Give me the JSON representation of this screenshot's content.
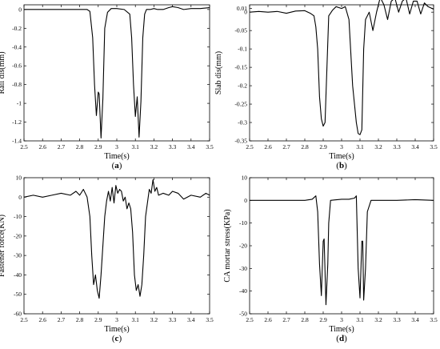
{
  "chart_data": [
    {
      "type": "line",
      "panel_label": "a",
      "xlabel": "Time(s)",
      "ylabel": "Rail dis(mm)",
      "xlim": [
        2.5,
        3.5
      ],
      "ylim": [
        -1.4,
        0.05
      ],
      "xticks": [
        2.5,
        2.6,
        2.7,
        2.8,
        2.9,
        3.0,
        3.1,
        3.2,
        3.3,
        3.4,
        3.5
      ],
      "xtick_labels": [
        "2.5",
        "2.6",
        "2.7",
        "2.8",
        "2.9",
        "3",
        "3.1",
        "3.2",
        "3.3",
        "3.4",
        "3.5"
      ],
      "yticks": [
        0,
        -0.2,
        -0.4,
        -0.6,
        -0.8,
        -1,
        -1.2,
        -1.4
      ],
      "ytick_labels": [
        "0",
        "-0.2",
        "-0.4",
        "-0.6",
        "-0.8",
        "-1",
        "-1.2",
        "-1.4"
      ],
      "grid": false,
      "series": [
        {
          "x": [
            2.5,
            2.6,
            2.7,
            2.8,
            2.84,
            2.855,
            2.87,
            2.88,
            2.89,
            2.9,
            2.905,
            2.915,
            2.925,
            2.935,
            2.95,
            2.97,
            3.0,
            3.04,
            3.07,
            3.08,
            3.09,
            3.1,
            3.11,
            3.12,
            3.13,
            3.14,
            3.15,
            3.16,
            3.18,
            3.2,
            3.22,
            3.25,
            3.28,
            3.3,
            3.33,
            3.36,
            3.4,
            3.45,
            3.5
          ],
          "y": [
            0,
            0,
            0,
            0,
            0,
            -0.02,
            -0.3,
            -0.8,
            -1.13,
            -0.88,
            -0.9,
            -1.37,
            -0.95,
            -0.2,
            -0.03,
            0.01,
            0.01,
            0.0,
            -0.05,
            -0.3,
            -0.8,
            -1.14,
            -0.93,
            -1.36,
            -0.98,
            -0.3,
            -0.05,
            0.0,
            0.0,
            0.01,
            0.0,
            0.0,
            0.02,
            0.03,
            0.02,
            0.0,
            0.01,
            0.01,
            0.02
          ]
        }
      ]
    },
    {
      "type": "line",
      "panel_label": "b",
      "xlabel": "Time(s)",
      "ylabel": "Slab dis(mm)",
      "xlim": [
        2.5,
        3.5
      ],
      "ylim": [
        -0.35,
        0.02
      ],
      "xticks": [
        2.5,
        2.6,
        2.7,
        2.8,
        2.9,
        3.0,
        3.1,
        3.2,
        3.3,
        3.4,
        3.5
      ],
      "xtick_labels": [
        "2.5",
        "2.6",
        "2.7",
        "2.8",
        "2.9",
        "3",
        "3.1",
        "3.2",
        "3.3",
        "3.4",
        "3.5"
      ],
      "yticks": [
        0.01,
        0,
        -0.05,
        -0.1,
        -0.15,
        -0.2,
        -0.25,
        -0.3,
        -0.35
      ],
      "ytick_labels": [
        "0.01",
        "0",
        "-0.05",
        "-0.1",
        "-0.15",
        "-0.2",
        "-0.25",
        "-0.3",
        "-0.35"
      ],
      "grid": false,
      "series": [
        {
          "x": [
            2.5,
            2.55,
            2.6,
            2.65,
            2.7,
            2.75,
            2.8,
            2.83,
            2.85,
            2.86,
            2.87,
            2.88,
            2.89,
            2.9,
            2.91,
            2.93,
            2.95,
            2.97,
            3.0,
            3.02,
            3.04,
            3.06,
            3.08,
            3.09,
            3.1,
            3.11,
            3.12,
            3.13,
            3.15,
            3.17,
            3.19,
            3.21,
            3.23,
            3.25,
            3.27,
            3.29,
            3.31,
            3.33,
            3.35,
            3.37,
            3.39,
            3.41,
            3.43,
            3.45,
            3.47,
            3.5
          ],
          "y": [
            0.0,
            0.002,
            0.0,
            0.002,
            -0.003,
            0.003,
            0.004,
            -0.003,
            -0.01,
            -0.04,
            -0.1,
            -0.23,
            -0.29,
            -0.31,
            -0.3,
            -0.01,
            0.005,
            0.015,
            0.01,
            0.015,
            -0.02,
            -0.2,
            -0.3,
            -0.33,
            -0.333,
            -0.32,
            -0.1,
            -0.02,
            0.0,
            -0.05,
            0.0,
            0.04,
            0.02,
            -0.02,
            0.03,
            0.038,
            0.0,
            0.03,
            0.038,
            -0.005,
            0.03,
            0.03,
            -0.005,
            0.025,
            0.015,
            0.008
          ]
        }
      ]
    },
    {
      "type": "line",
      "panel_label": "c",
      "xlabel": "Time(s)",
      "ylabel": "Fastener force(KN)",
      "xlim": [
        2.5,
        3.5
      ],
      "ylim": [
        -60,
        10
      ],
      "xticks": [
        2.5,
        2.6,
        2.7,
        2.8,
        2.9,
        3.0,
        3.1,
        3.2,
        3.3,
        3.4,
        3.5
      ],
      "xtick_labels": [
        "2.5",
        "2.6",
        "2.7",
        "2.8",
        "2.9",
        "3",
        "3.1",
        "3.2",
        "3.3",
        "3.4",
        "3.5"
      ],
      "yticks": [
        10,
        0,
        -10,
        -20,
        -30,
        -40,
        -50,
        -60
      ],
      "ytick_labels": [
        "10",
        "0",
        "-10",
        "-20",
        "-30",
        "-40",
        "-50",
        "-60"
      ],
      "grid": false,
      "series": [
        {
          "x": [
            2.5,
            2.55,
            2.6,
            2.65,
            2.7,
            2.75,
            2.78,
            2.8,
            2.82,
            2.84,
            2.855,
            2.865,
            2.875,
            2.885,
            2.895,
            2.905,
            2.915,
            2.925,
            2.935,
            2.945,
            2.955,
            2.965,
            2.975,
            2.985,
            2.995,
            3.005,
            3.015,
            3.025,
            3.035,
            3.045,
            3.055,
            3.065,
            3.075,
            3.085,
            3.095,
            3.105,
            3.115,
            3.125,
            3.135,
            3.145,
            3.155,
            3.165,
            3.175,
            3.185,
            3.195,
            3.205,
            3.215,
            3.225,
            3.25,
            3.28,
            3.3,
            3.33,
            3.36,
            3.4,
            3.45,
            3.48,
            3.5
          ],
          "y": [
            0,
            1,
            0,
            1,
            2,
            1,
            3,
            1,
            4,
            0,
            -10,
            -30,
            -45,
            -40,
            -48,
            -52,
            -40,
            -25,
            -10,
            -2,
            3,
            -2,
            5,
            -3,
            6,
            2,
            4,
            3,
            -2,
            0,
            -6,
            -3,
            -6,
            -18,
            -40,
            -48,
            -45,
            -51,
            -45,
            -30,
            -10,
            -3,
            4,
            2,
            9,
            3,
            5,
            1,
            2,
            1,
            3,
            2,
            -1,
            1,
            0,
            2,
            1
          ]
        }
      ]
    },
    {
      "type": "line",
      "panel_label": "d",
      "xlabel": "Time(s)",
      "ylabel": "CA mortar stress(KPa)",
      "xlim": [
        2.5,
        3.5
      ],
      "ylim": [
        -50,
        10
      ],
      "xticks": [
        2.5,
        2.6,
        2.7,
        2.8,
        2.9,
        3.0,
        3.1,
        3.2,
        3.3,
        3.4,
        3.5
      ],
      "xtick_labels": [
        "2.5",
        "2.6",
        "2.7",
        "2.8",
        "2.9",
        "3",
        "3.1",
        "3.2",
        "3.3",
        "3.4",
        "3.5"
      ],
      "yticks": [
        10,
        0,
        -10,
        -20,
        -30,
        -40,
        -50
      ],
      "ytick_labels": [
        "10",
        "0",
        "-10",
        "-20",
        "-30",
        "-40",
        "-50"
      ],
      "grid": false,
      "series": [
        {
          "x": [
            2.5,
            2.6,
            2.7,
            2.8,
            2.84,
            2.86,
            2.87,
            2.88,
            2.89,
            2.9,
            2.905,
            2.915,
            2.925,
            2.93,
            2.94,
            2.96,
            3.0,
            3.04,
            3.07,
            3.08,
            3.09,
            3.1,
            3.11,
            3.115,
            3.12,
            3.13,
            3.14,
            3.16,
            3.2,
            3.3,
            3.4,
            3.5
          ],
          "y": [
            0,
            0,
            0,
            0,
            0.5,
            2,
            -5,
            -28,
            -42,
            -18,
            -17,
            -46,
            -28,
            -10,
            0,
            0.2,
            0.5,
            0.5,
            1,
            2,
            -30,
            -43,
            -18,
            -18,
            -44,
            -30,
            -5,
            0,
            0,
            0,
            0.3,
            0
          ]
        }
      ]
    }
  ]
}
